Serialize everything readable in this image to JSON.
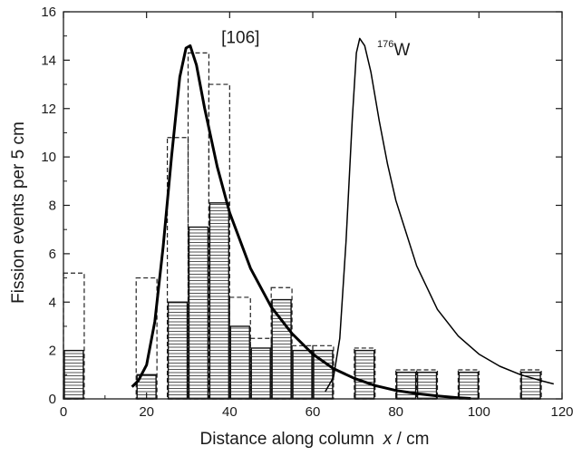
{
  "chart_data": {
    "type": "bar",
    "title": "",
    "xlabel": "Distance along column",
    "xlabel_var": "x",
    "xlabel_unit": " / cm",
    "ylabel": "Fission events per 5 cm",
    "xlim": [
      0,
      120
    ],
    "ylim": [
      0,
      16
    ],
    "x_ticks": [
      0,
      20,
      40,
      60,
      80,
      100,
      120
    ],
    "y_ticks": [
      0,
      2,
      4,
      6,
      8,
      10,
      12,
      14,
      16
    ],
    "bin_width": 5,
    "grid": false,
    "series": [
      {
        "style": "dashed-outline-bars",
        "bins": [
          {
            "x": 0,
            "y": 5.2
          },
          {
            "x": 17.5,
            "y": 5.0
          },
          {
            "x": 25,
            "y": 10.8
          },
          {
            "x": 30,
            "y": 14.3
          },
          {
            "x": 35,
            "y": 13.0
          },
          {
            "x": 40,
            "y": 4.2
          },
          {
            "x": 45,
            "y": 2.5
          },
          {
            "x": 50,
            "y": 4.6
          },
          {
            "x": 55,
            "y": 2.2
          },
          {
            "x": 60,
            "y": 2.2
          },
          {
            "x": 70,
            "y": 2.1
          },
          {
            "x": 80,
            "y": 1.2
          },
          {
            "x": 85,
            "y": 1.2
          },
          {
            "x": 95,
            "y": 1.2
          },
          {
            "x": 110,
            "y": 1.2
          }
        ]
      },
      {
        "style": "hatched-solid-bars",
        "bins": [
          {
            "x": 0,
            "y": 2.0
          },
          {
            "x": 17.5,
            "y": 1.0
          },
          {
            "x": 25,
            "y": 4.0
          },
          {
            "x": 30,
            "y": 7.1
          },
          {
            "x": 35,
            "y": 8.1
          },
          {
            "x": 40,
            "y": 3.0
          },
          {
            "x": 45,
            "y": 2.1
          },
          {
            "x": 50,
            "y": 4.1
          },
          {
            "x": 55,
            "y": 2.0
          },
          {
            "x": 60,
            "y": 2.0
          },
          {
            "x": 70,
            "y": 2.0
          },
          {
            "x": 80,
            "y": 1.1
          },
          {
            "x": 85,
            "y": 1.1
          },
          {
            "x": 95,
            "y": 1.1
          },
          {
            "x": 110,
            "y": 1.1
          }
        ]
      },
      {
        "style": "thick-curve",
        "points": [
          [
            16.5,
            0.5
          ],
          [
            18,
            0.75
          ],
          [
            20,
            1.4
          ],
          [
            22,
            3.2
          ],
          [
            24,
            6.3
          ],
          [
            26,
            10.0
          ],
          [
            28,
            13.3
          ],
          [
            29.5,
            14.5
          ],
          [
            30.5,
            14.6
          ],
          [
            32,
            13.8
          ],
          [
            34,
            12.0
          ],
          [
            37,
            9.6
          ],
          [
            40,
            7.7
          ],
          [
            45,
            5.4
          ],
          [
            50,
            3.8
          ],
          [
            55,
            2.7
          ],
          [
            60,
            1.85
          ],
          [
            65,
            1.25
          ],
          [
            70,
            0.85
          ],
          [
            75,
            0.55
          ],
          [
            80,
            0.35
          ],
          [
            85,
            0.22
          ],
          [
            90,
            0.12
          ],
          [
            95,
            0.05
          ],
          [
            98,
            0.02
          ]
        ]
      },
      {
        "style": "thin-curve",
        "points": [
          [
            63,
            0.3
          ],
          [
            65,
            0.9
          ],
          [
            66.5,
            2.5
          ],
          [
            68,
            6.5
          ],
          [
            69.5,
            11.5
          ],
          [
            70.5,
            14.3
          ],
          [
            71.3,
            14.9
          ],
          [
            72.5,
            14.6
          ],
          [
            74,
            13.5
          ],
          [
            76,
            11.5
          ],
          [
            78,
            9.7
          ],
          [
            80,
            8.2
          ],
          [
            85,
            5.5
          ],
          [
            90,
            3.7
          ],
          [
            95,
            2.6
          ],
          [
            100,
            1.85
          ],
          [
            105,
            1.35
          ],
          [
            110,
            1.0
          ],
          [
            115,
            0.75
          ],
          [
            118,
            0.62
          ]
        ]
      }
    ],
    "annotations": [
      {
        "text": "[106]",
        "x": 38,
        "y": 14.7
      },
      {
        "sup": "176",
        "text": "W",
        "x": 75.5,
        "y": 14.2
      }
    ]
  }
}
